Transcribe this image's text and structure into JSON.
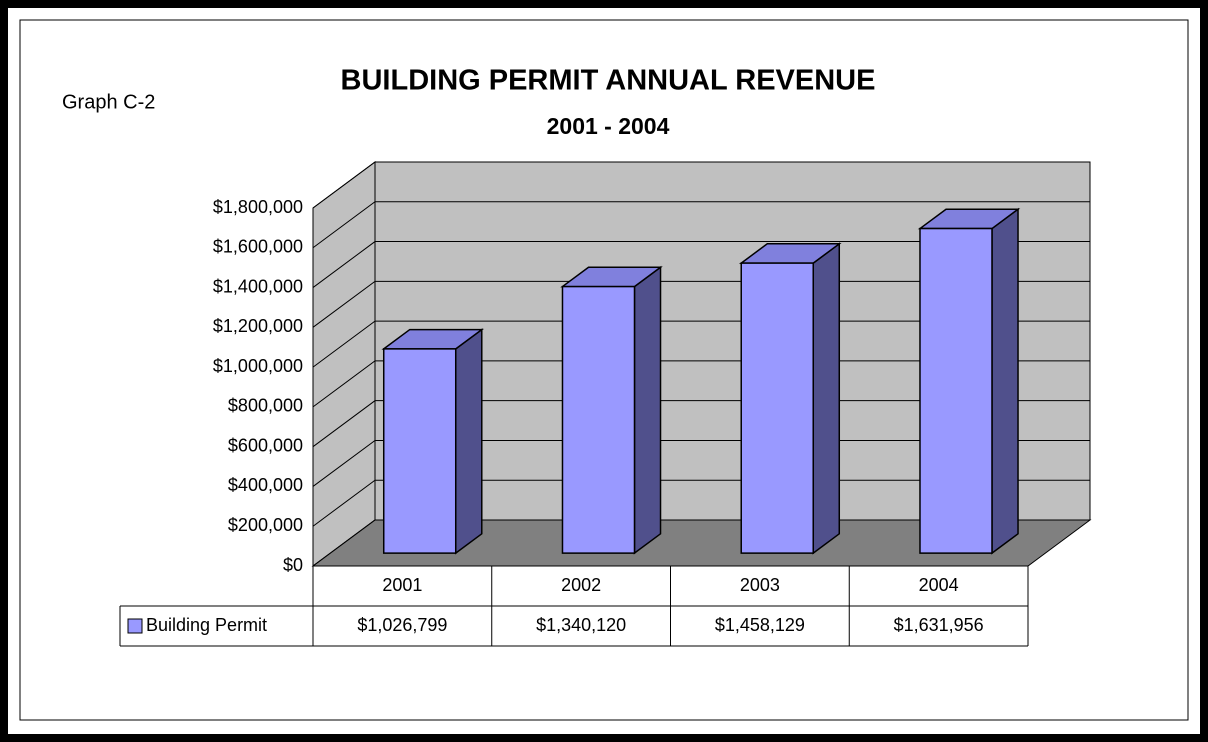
{
  "chart_data": {
    "type": "bar3d",
    "title": "BUILDING PERMIT ANNUAL REVENUE",
    "subtitle": "2001 - 2004",
    "annotation": "Graph C-2",
    "categories": [
      "2001",
      "2002",
      "2003",
      "2004"
    ],
    "series": [
      {
        "name": "Building Permit",
        "color": "#9999ff",
        "values": [
          1026799,
          1340120,
          1458129,
          1631956
        ],
        "value_labels": [
          "$1,026,799",
          "$1,340,120",
          "$1,458,129",
          "$1,631,956"
        ]
      }
    ],
    "ylim": [
      0,
      1800000
    ],
    "yticks": [
      {
        "value": 0,
        "label": "$0"
      },
      {
        "value": 200000,
        "label": "$200,000"
      },
      {
        "value": 400000,
        "label": "$400,000"
      },
      {
        "value": 600000,
        "label": "$600,000"
      },
      {
        "value": 800000,
        "label": "$800,000"
      },
      {
        "value": 1000000,
        "label": "$1,000,000"
      },
      {
        "value": 1200000,
        "label": "$1,200,000"
      },
      {
        "value": 1400000,
        "label": "$1,400,000"
      },
      {
        "value": 1600000,
        "label": "$1,600,000"
      },
      {
        "value": 1800000,
        "label": "$1,800,000"
      }
    ],
    "grid": true
  }
}
